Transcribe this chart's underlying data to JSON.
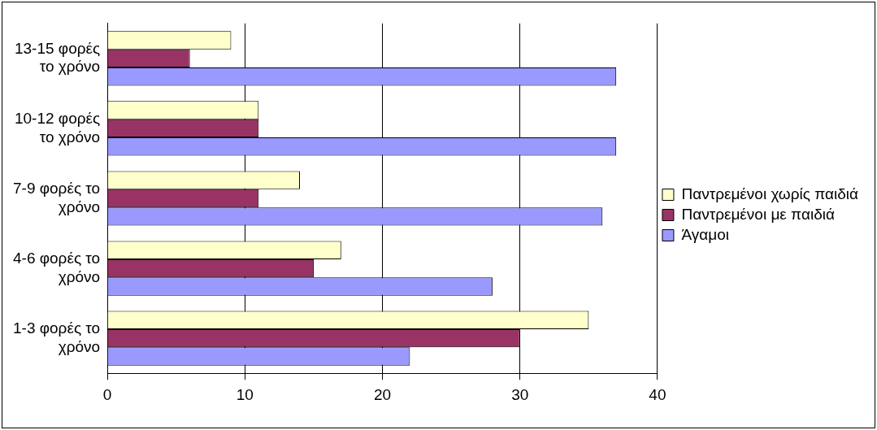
{
  "chart_data": {
    "type": "bar",
    "orientation": "horizontal",
    "categories": [
      "13-15 φορές το χρόνο",
      "10-12 φορές το χρόνο",
      "7-9 φορές το χρόνο",
      "4-6 φορές το χρόνο",
      "1-3 φορές το χρόνο"
    ],
    "series": [
      {
        "name": "Παντρεμένοι χωρίς παιδιά",
        "color": "#ffffcc",
        "values": [
          9,
          11,
          14,
          17,
          35
        ]
      },
      {
        "name": "Παντρεμένοι με παιδιά",
        "color": "#993366",
        "values": [
          6,
          11,
          11,
          15,
          30
        ]
      },
      {
        "name": "Άγαμοι",
        "color": "#9999ff",
        "values": [
          37,
          37,
          36,
          28,
          22
        ]
      }
    ],
    "xlim": [
      0,
      40
    ],
    "xticks": [
      0,
      10,
      20,
      30,
      40
    ],
    "grid": "x",
    "legend": "right"
  }
}
